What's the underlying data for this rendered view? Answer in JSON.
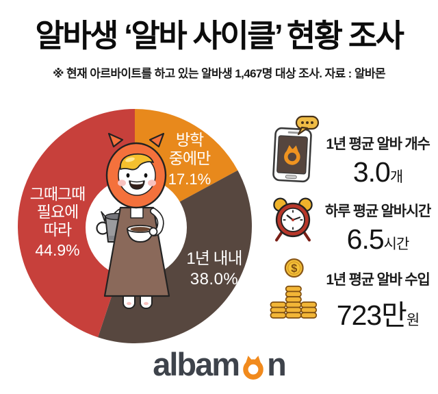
{
  "header": {
    "title": "알바생 ‘알바 사이클’ 현황 조사",
    "subtitle": "※ 현재 아르바이트를 하고 있는 알바생 1,467명 대상 조사. 자료 : 알바몬"
  },
  "chart_data": {
    "type": "pie",
    "title": "알바생 알바 사이클(근무 주기) 분포",
    "unit": "%",
    "donut": true,
    "hole_ratio": 0.43,
    "start_angle_deg": -90,
    "direction": "clockwise",
    "segments": [
      {
        "label": "방학 중에만",
        "value": 17.1,
        "color": "#e8891c",
        "label_lines": [
          "방학",
          "중에만",
          "17.1%"
        ]
      },
      {
        "label": "1년 내내",
        "value": 38.0,
        "color": "#57473f",
        "label_lines": [
          "1년 내내",
          "38.0%"
        ]
      },
      {
        "label": "그때그때 필요에 따라",
        "value": 44.9,
        "color": "#c7403b",
        "label_lines": [
          "그때그때",
          "필요에",
          "따라",
          "44.9%"
        ]
      }
    ]
  },
  "stats": [
    {
      "icon": "phone-chat-icon",
      "label": "1년 평균 알바 개수",
      "value": "3.0",
      "unit": "개"
    },
    {
      "icon": "alarm-clock-icon",
      "label": "하루 평균 알바시간",
      "value": "6.5",
      "unit": "시간"
    },
    {
      "icon": "money-coins-icon",
      "label": "1년 평균 알바 수입",
      "value": "723만",
      "unit": "원"
    }
  ],
  "footer": {
    "logo_left": "albam",
    "logo_right": "n",
    "logo_color": "#3e434b",
    "logo_accent": "#f18a1d"
  }
}
